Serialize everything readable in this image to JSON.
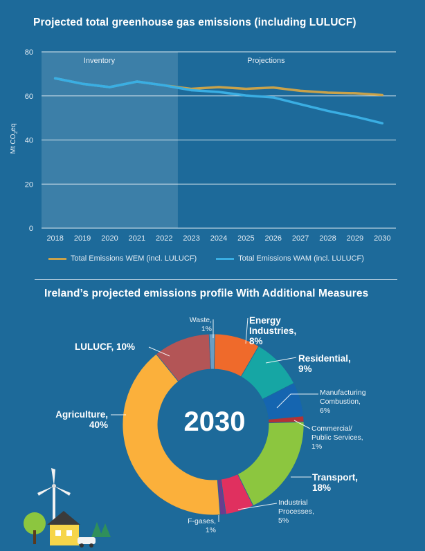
{
  "chart_data": [
    {
      "type": "line",
      "title": "Projected total greenhouse gas emissions (including LULUCF)",
      "ylabel": "Mt CO2eq",
      "ylabel_main": "Mt CO",
      "ylabel_sub": "2",
      "ylabel_tail": "eq",
      "ylim": [
        0,
        80
      ],
      "yticks": [
        "0",
        "20",
        "40",
        "60",
        "80"
      ],
      "x": [
        "2018",
        "2019",
        "2020",
        "2021",
        "2022",
        "2023",
        "2024",
        "2025",
        "2026",
        "2027",
        "2028",
        "2029",
        "2030"
      ],
      "regions": [
        {
          "label": "Inventory",
          "from": "2017.5",
          "to": "2022.5"
        },
        {
          "label": "Projections",
          "from": "2022.5",
          "to": "2030.5"
        }
      ],
      "grid": true,
      "legend": "bottom",
      "series": [
        {
          "name": "Total Emissions WEM (incl. LULUCF)",
          "color": "#c9a24a",
          "values": [
            68.0,
            65.5,
            64.0,
            66.5,
            64.8,
            63.2,
            64.0,
            63.2,
            63.8,
            62.3,
            61.5,
            61.2,
            60.4
          ]
        },
        {
          "name": "Total Emissions WAM (incl. LULUCF)",
          "color": "#3aaee3",
          "values": [
            68.0,
            65.5,
            64.0,
            66.5,
            64.8,
            62.6,
            61.8,
            60.2,
            59.3,
            56.2,
            53.2,
            50.6,
            47.6
          ]
        }
      ]
    },
    {
      "type": "pie",
      "title": "Ireland’s projected emissions profile With Additional Measures",
      "center_label": "2030",
      "slices": [
        {
          "name": "Waste",
          "value": 1,
          "color": "#6a9ec4"
        },
        {
          "name": "Energy Industries",
          "value": 8,
          "color": "#ef6a2b"
        },
        {
          "name": "Residential",
          "value": 9,
          "color": "#16a6a4"
        },
        {
          "name": "Manufacturing Combustion",
          "value": 6,
          "color": "#1565b0"
        },
        {
          "name": "Commercial/ Public Services",
          "value": 1,
          "color": "#b33236"
        },
        {
          "name": "Transport",
          "value": 18,
          "color": "#8cc63f"
        },
        {
          "name": "Industrial Processes",
          "value": 5,
          "color": "#e0305f"
        },
        {
          "name": "F-gases",
          "value": 1,
          "color": "#6a3d8e"
        },
        {
          "name": "Agriculture",
          "value": 40,
          "color": "#fbb03b"
        },
        {
          "name": "LULUCF",
          "value": 10,
          "color": "#b35556"
        }
      ],
      "labels": {
        "waste": [
          "Waste,",
          "1%"
        ],
        "energy": [
          "Energy",
          "Industries,",
          "8%"
        ],
        "residential": [
          "Residential,",
          "9%"
        ],
        "manufacturing": [
          "Manufacturing",
          "Combustion,",
          "6%"
        ],
        "commercial": [
          "Commercial/",
          "Public Services,",
          "1%"
        ],
        "transport": [
          "Transport,",
          "18%"
        ],
        "industrial": [
          "Industrial",
          "Processes,",
          "5%"
        ],
        "fgases": [
          "F-gases,",
          "1%"
        ],
        "agriculture": [
          "Agriculture,",
          "40%"
        ],
        "lulucf": [
          "LULUCF, 10%"
        ]
      }
    }
  ]
}
